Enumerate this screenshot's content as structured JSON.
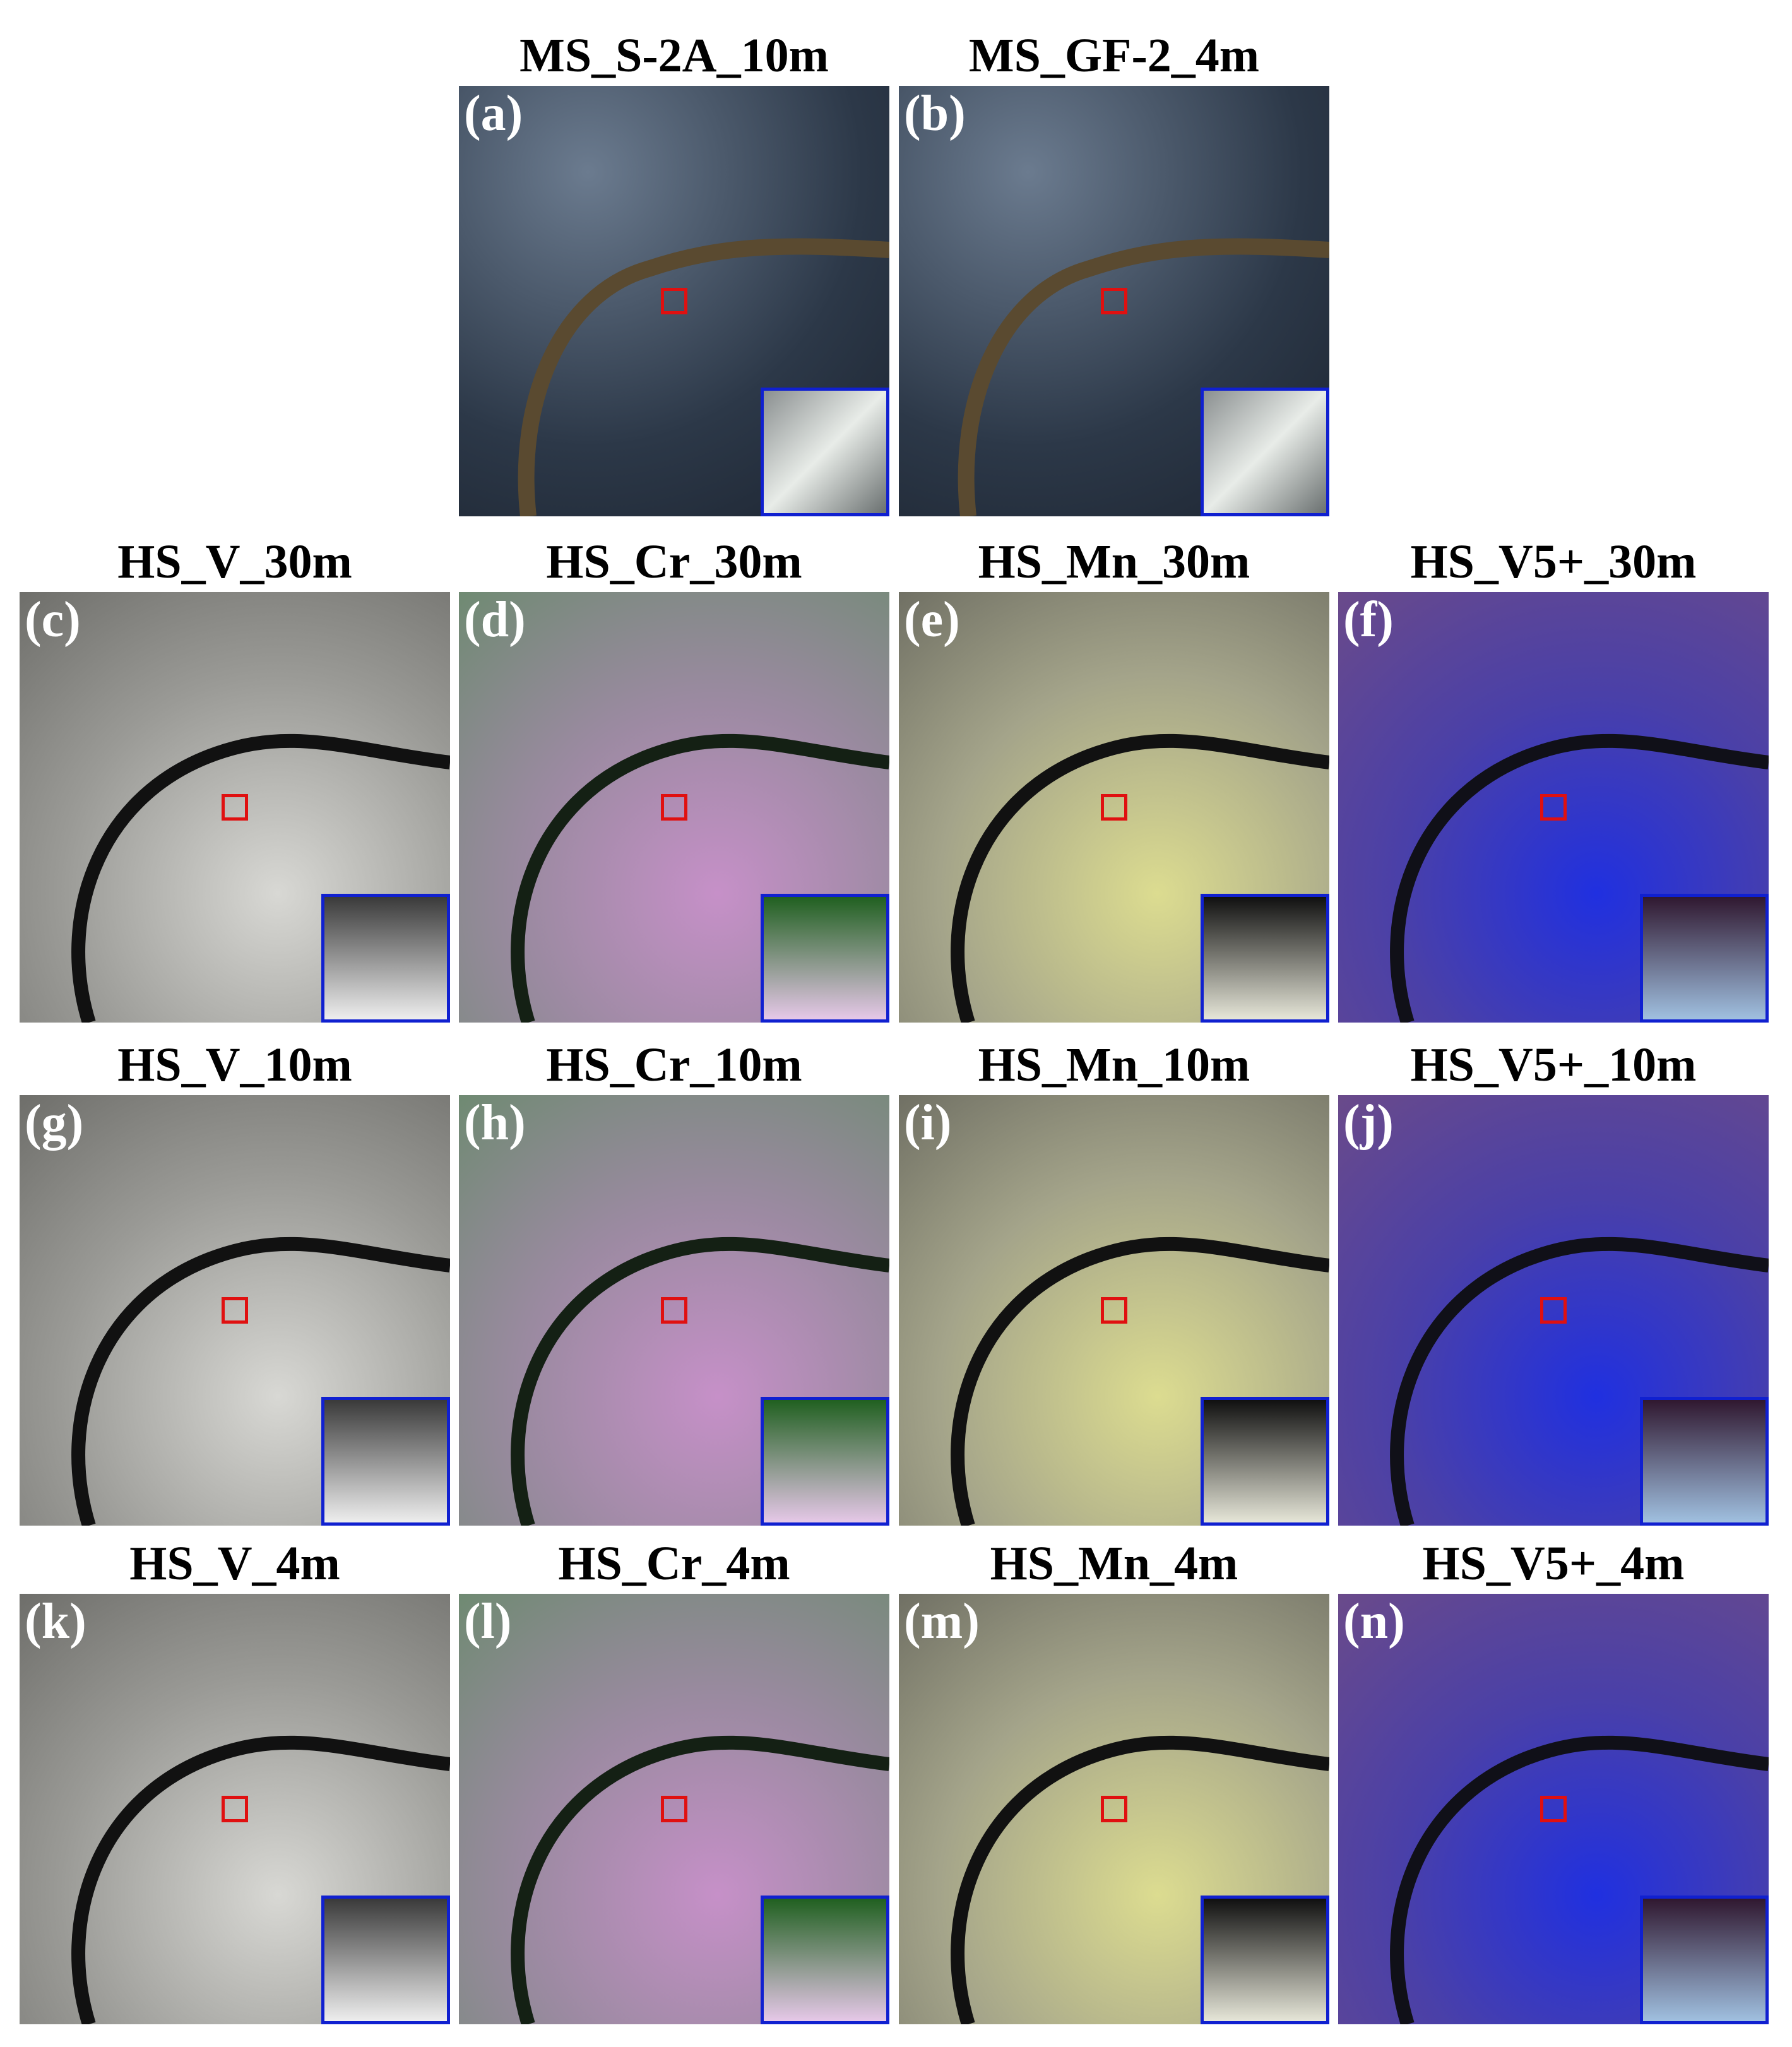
{
  "figure": {
    "panels": [
      {
        "title": "MS_S-2A_10m",
        "label": "(a)"
      },
      {
        "title": "MS_GF-2_4m",
        "label": "(b)"
      },
      {
        "title": "HS_V_30m",
        "label": "(c)"
      },
      {
        "title": "HS_Cr_30m",
        "label": "(d)"
      },
      {
        "title": "HS_Mn_30m",
        "label": "(e)"
      },
      {
        "title": "HS_V5+_30m",
        "label": "(f)"
      },
      {
        "title": "HS_V_10m",
        "label": "(g)"
      },
      {
        "title": "HS_Cr_10m",
        "label": "(h)"
      },
      {
        "title": "HS_Mn_10m",
        "label": "(i)"
      },
      {
        "title": "HS_V5+_10m",
        "label": "(j)"
      },
      {
        "title": "HS_V_4m",
        "label": "(k)"
      },
      {
        "title": "HS_Cr_4m",
        "label": "(l)"
      },
      {
        "title": "HS_Mn_4m",
        "label": "(m)"
      },
      {
        "title": "HS_V5+_4m",
        "label": "(n)"
      }
    ]
  }
}
